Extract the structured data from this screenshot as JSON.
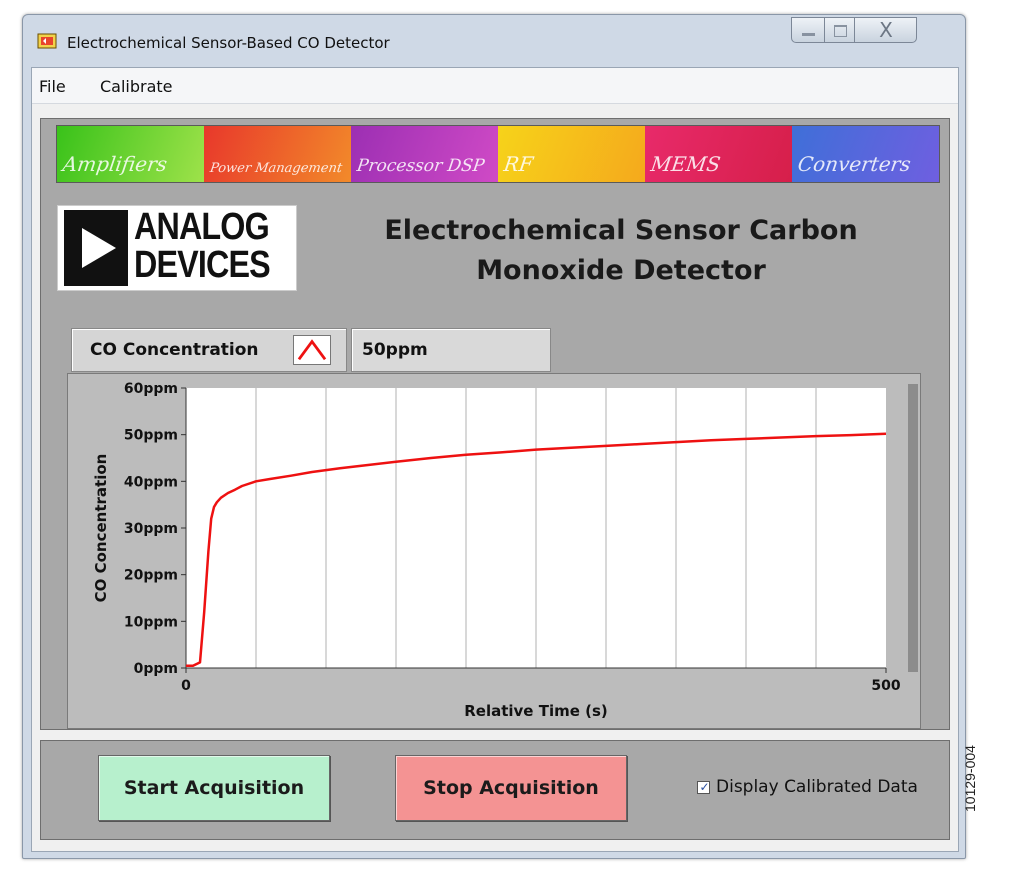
{
  "window": {
    "title": "Electrochemical Sensor-Based CO Detector",
    "close_glyph": "X"
  },
  "menu": {
    "items": [
      "File",
      "Calibrate"
    ]
  },
  "banner": [
    "Amplifiers",
    "Power Management",
    "Processor DSP",
    "RF",
    "MEMS",
    "Converters"
  ],
  "logo": {
    "line1": "ANALOG",
    "line2": "DEVICES"
  },
  "app_title": {
    "line1": "Electrochemical Sensor Carbon",
    "line2": "Monoxide Detector"
  },
  "legend": {
    "label": "CO Concentration",
    "current_value": "50ppm"
  },
  "buttons": {
    "start": "Start Acquisition",
    "stop": "Stop Acquisition"
  },
  "checkbox": {
    "label": "Display Calibrated Data",
    "checked": true,
    "glyph": "✓"
  },
  "figure_id": "10129-004",
  "colors": {
    "series": "#ee1111",
    "start_button": "#b7f0cd",
    "stop_button": "#f49393",
    "panel": "#a8a8a8"
  },
  "chart_data": {
    "type": "line",
    "title": "",
    "xlabel": "Relative Time (s)",
    "ylabel": "CO Concentration",
    "xlim": [
      0,
      500
    ],
    "ylim": [
      0,
      60
    ],
    "x_ticks": [
      0,
      500
    ],
    "y_ticks": [
      0,
      10,
      20,
      30,
      40,
      50,
      60
    ],
    "y_tick_labels": [
      "0ppm",
      "10ppm",
      "20ppm",
      "30ppm",
      "40ppm",
      "50ppm",
      "60ppm"
    ],
    "vertical_gridlines": 10,
    "series": [
      {
        "name": "CO Concentration",
        "x": [
          0,
          5,
          10,
          13,
          16,
          18,
          20,
          22,
          25,
          30,
          35,
          40,
          50,
          60,
          75,
          90,
          110,
          130,
          150,
          175,
          200,
          225,
          250,
          275,
          300,
          325,
          350,
          375,
          400,
          425,
          450,
          475,
          500
        ],
        "values": [
          0.5,
          0.5,
          1.2,
          12,
          25,
          32,
          34.5,
          35.5,
          36.5,
          37.5,
          38.2,
          39,
          40,
          40.5,
          41.2,
          42,
          42.8,
          43.5,
          44.2,
          45,
          45.7,
          46.2,
          46.8,
          47.2,
          47.6,
          48,
          48.4,
          48.8,
          49.1,
          49.4,
          49.7,
          49.9,
          50.2
        ]
      }
    ]
  }
}
